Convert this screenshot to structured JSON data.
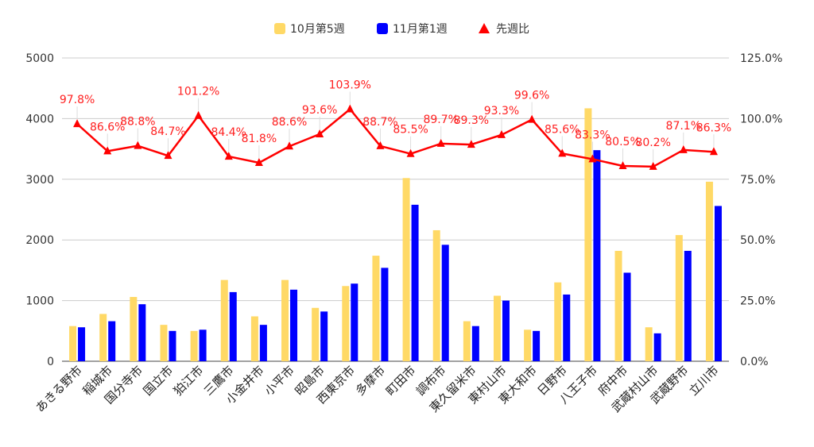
{
  "chart_data": {
    "type": "bar",
    "categories": [
      "あきる野市",
      "稲城市",
      "国分寺市",
      "国立市",
      "狛江市",
      "三鷹市",
      "小金井市",
      "小平市",
      "昭島市",
      "西東京市",
      "多摩市",
      "町田市",
      "調布市",
      "東久留米市",
      "東村山市",
      "東大和市",
      "日野市",
      "八王子市",
      "府中市",
      "武蔵村山市",
      "武蔵野市",
      "立川市"
    ],
    "series": [
      {
        "name": "10月第5週",
        "color": "#ffd966",
        "axis": "left",
        "values": [
          580,
          780,
          1060,
          600,
          500,
          1340,
          740,
          1340,
          880,
          1240,
          1740,
          3020,
          2160,
          660,
          1080,
          520,
          1300,
          4170,
          1820,
          560,
          2080,
          2960
        ]
      },
      {
        "name": "11月第1週",
        "color": "#0000ff",
        "axis": "left",
        "values": [
          560,
          660,
          940,
          500,
          520,
          1140,
          600,
          1180,
          820,
          1280,
          1540,
          2580,
          1920,
          580,
          1000,
          500,
          1100,
          3480,
          1460,
          460,
          1820,
          2560
        ]
      },
      {
        "name": "先週比",
        "color": "#ff0000",
        "axis": "right",
        "type": "line",
        "values": [
          97.8,
          86.6,
          88.8,
          84.7,
          101.2,
          84.4,
          81.8,
          88.6,
          93.6,
          103.9,
          88.7,
          85.5,
          89.7,
          89.3,
          93.3,
          99.6,
          85.6,
          83.3,
          80.5,
          80.2,
          87.1,
          86.3
        ],
        "labels": [
          "97.8%",
          "86.6%",
          "88.8%",
          "84.7%",
          "101.2%",
          "84.4%",
          "81.8%",
          "88.6%",
          "93.6%",
          "103.9%",
          "88.7%",
          "85.5%",
          "89.7%",
          "89.3%",
          "93.3%",
          "99.6%",
          "85.6%",
          "83.3%",
          "80.5%",
          "80.2%",
          "87.1%",
          "86.3%"
        ]
      }
    ],
    "ylim_left": [
      0,
      5000
    ],
    "yticks_left": [
      "0",
      "1000",
      "2000",
      "3000",
      "4000",
      "5000"
    ],
    "ylim_right": [
      0,
      125
    ],
    "yticks_right": [
      "0.0%",
      "25.0%",
      "50.0%",
      "75.0%",
      "100.0%",
      "125.0%"
    ],
    "grid": true,
    "legend_position": "top-center",
    "title": "",
    "xlabel": "",
    "ylabel": ""
  }
}
